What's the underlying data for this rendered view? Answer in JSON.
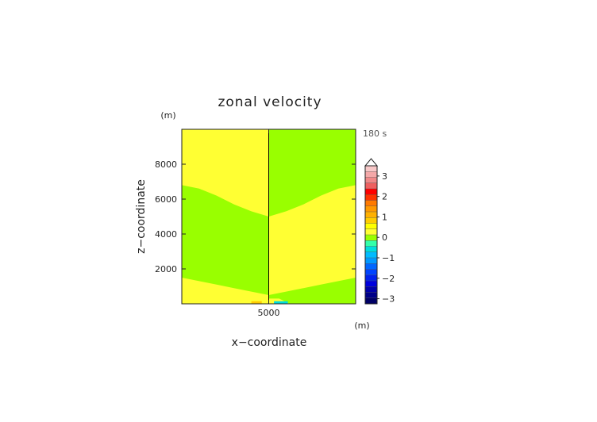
{
  "chart_data": {
    "type": "heatmap",
    "title": "zonal velocity",
    "time_label": "180 s",
    "xlabel": "x−coordinate",
    "ylabel": "z−coordinate",
    "x_unit": "(m)",
    "y_unit": "(m)",
    "x_ticks": [
      5000
    ],
    "x_tick_labels": [
      "5000"
    ],
    "y_ticks": [
      2000,
      4000,
      6000,
      8000
    ],
    "y_tick_labels": [
      "2000",
      "4000",
      "6000",
      "8000"
    ],
    "xlim": [
      0,
      10000
    ],
    "ylim": [
      0,
      10000
    ],
    "colorbar": {
      "labels": [
        "3",
        "2",
        "1",
        "0",
        "−1",
        "−2",
        "−3"
      ],
      "label_values": [
        3,
        2,
        1,
        0,
        -1,
        -2,
        -3
      ],
      "extend": "max",
      "levels": [
        {
          "lo": 3.25,
          "color": "#f8c8c8"
        },
        {
          "lo": 3.0,
          "color": "#f4a8a8"
        },
        {
          "lo": 2.75,
          "color": "#f08888"
        },
        {
          "lo": 2.5,
          "color": "#ee6060"
        },
        {
          "lo": 2.25,
          "color": "#ff0000"
        },
        {
          "lo": 2.0,
          "color": "#ff3300"
        },
        {
          "lo": 1.75,
          "color": "#ff7a00"
        },
        {
          "lo": 1.5,
          "color": "#ff9900"
        },
        {
          "lo": 1.25,
          "color": "#ffb000"
        },
        {
          "lo": 1.0,
          "color": "#ffcc00"
        },
        {
          "lo": 0.5,
          "color": "#ffff00"
        },
        {
          "lo": 0.0,
          "color": "#ffff33"
        },
        {
          "lo": -0.5,
          "color": "#99ff00"
        },
        {
          "lo": -0.75,
          "color": "#33ffaa"
        },
        {
          "lo": -1.0,
          "color": "#00dddd"
        },
        {
          "lo": -1.25,
          "color": "#00bbff"
        },
        {
          "lo": -1.5,
          "color": "#0099ff"
        },
        {
          "lo": -1.75,
          "color": "#0066ff"
        },
        {
          "lo": -2.0,
          "color": "#0044ff"
        },
        {
          "lo": -2.25,
          "color": "#0022ee"
        },
        {
          "lo": -2.5,
          "color": "#0000dd"
        },
        {
          "lo": -2.75,
          "color": "#0000aa"
        },
        {
          "lo": -3.0,
          "color": "#000088"
        },
        {
          "lo": -3.25,
          "color": "#000066"
        }
      ]
    },
    "field": {
      "background_color": "#ffff33",
      "regions": [
        {
          "name": "left-negative-band",
          "color": "#99ff00",
          "polygon": [
            [
              0,
              6800
            ],
            [
              1000,
              6600
            ],
            [
              2000,
              6200
            ],
            [
              3000,
              5700
            ],
            [
              4000,
              5300
            ],
            [
              5000,
              5000
            ],
            [
              5000,
              500
            ],
            [
              4000,
              700
            ],
            [
              3000,
              900
            ],
            [
              2000,
              1100
            ],
            [
              1000,
              1300
            ],
            [
              0,
              1500
            ]
          ]
        },
        {
          "name": "right-negative-region",
          "color": "#99ff00",
          "polygon": [
            [
              5000,
              10000
            ],
            [
              10000,
              10000
            ],
            [
              10000,
              6800
            ],
            [
              9000,
              6600
            ],
            [
              8000,
              6200
            ],
            [
              7000,
              5700
            ],
            [
              6000,
              5300
            ],
            [
              5000,
              5000
            ]
          ]
        },
        {
          "name": "right-bottom-negative-region",
          "color": "#99ff00",
          "polygon": [
            [
              5000,
              500
            ],
            [
              6000,
              700
            ],
            [
              7000,
              900
            ],
            [
              8000,
              1100
            ],
            [
              9000,
              1300
            ],
            [
              10000,
              1500
            ],
            [
              10000,
              0
            ],
            [
              6200,
              0
            ],
            [
              5600,
              300
            ],
            [
              5000,
              300
            ]
          ]
        },
        {
          "name": "bottom-left-positive-patch",
          "color": "#ffcc00",
          "polygon": [
            [
              4000,
              0
            ],
            [
              4600,
              0
            ],
            [
              4600,
              150
            ],
            [
              4000,
              150
            ]
          ]
        },
        {
          "name": "bottom-right-negative-patch",
          "color": "#00dddd",
          "polygon": [
            [
              5300,
              0
            ],
            [
              6100,
              0
            ],
            [
              6100,
              150
            ],
            [
              5300,
              150
            ]
          ]
        }
      ],
      "center_line": {
        "x": 5000,
        "color": "#000000"
      }
    }
  }
}
